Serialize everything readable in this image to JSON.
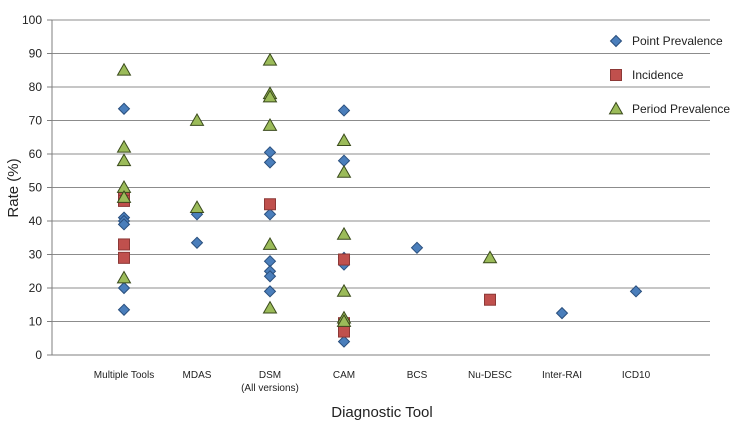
{
  "chart_data": {
    "type": "scatter",
    "title": "",
    "xlabel": "Diagnostic Tool",
    "ylabel": "Rate (%)",
    "ylim": [
      0,
      100
    ],
    "yticks": [
      0,
      10,
      20,
      30,
      40,
      50,
      60,
      70,
      80,
      90,
      100
    ],
    "grid": true,
    "legend_position": "top-right",
    "categories": [
      {
        "label": "Multiple Tools"
      },
      {
        "label": "MDAS"
      },
      {
        "label": "DSM",
        "sublabel": "(All versions)"
      },
      {
        "label": "CAM"
      },
      {
        "label": "BCS"
      },
      {
        "label": "Nu-DESC"
      },
      {
        "label": "Inter-RAI"
      },
      {
        "label": "ICD10"
      }
    ],
    "series": [
      {
        "name": "Point Prevalence",
        "marker": "diamond",
        "color": "#4a7ebb",
        "stroke": "#2a4f7d",
        "points": [
          {
            "category": "Multiple Tools",
            "value": 73.5
          },
          {
            "category": "Multiple Tools",
            "value": 41
          },
          {
            "category": "Multiple Tools",
            "value": 40
          },
          {
            "category": "Multiple Tools",
            "value": 39
          },
          {
            "category": "Multiple Tools",
            "value": 20
          },
          {
            "category": "Multiple Tools",
            "value": 13.5
          },
          {
            "category": "MDAS",
            "value": 42
          },
          {
            "category": "MDAS",
            "value": 33.5
          },
          {
            "category": "DSM",
            "value": 60.5
          },
          {
            "category": "DSM",
            "value": 57.5
          },
          {
            "category": "DSM",
            "value": 42
          },
          {
            "category": "DSM",
            "value": 28
          },
          {
            "category": "DSM",
            "value": 25
          },
          {
            "category": "DSM",
            "value": 23.5
          },
          {
            "category": "DSM",
            "value": 19
          },
          {
            "category": "CAM",
            "value": 73
          },
          {
            "category": "CAM",
            "value": 58
          },
          {
            "category": "CAM",
            "value": 29
          },
          {
            "category": "CAM",
            "value": 27
          },
          {
            "category": "CAM",
            "value": 4
          },
          {
            "category": "BCS",
            "value": 32
          },
          {
            "category": "Inter-RAI",
            "value": 12.5
          },
          {
            "category": "ICD10",
            "value": 19
          }
        ]
      },
      {
        "name": "Incidence",
        "marker": "square",
        "color": "#c0504d",
        "stroke": "#8c3836",
        "points": [
          {
            "category": "Multiple Tools",
            "value": 47
          },
          {
            "category": "Multiple Tools",
            "value": 46
          },
          {
            "category": "Multiple Tools",
            "value": 33
          },
          {
            "category": "Multiple Tools",
            "value": 29
          },
          {
            "category": "DSM",
            "value": 45
          },
          {
            "category": "CAM",
            "value": 28.5
          },
          {
            "category": "CAM",
            "value": 9.5
          },
          {
            "category": "CAM",
            "value": 7
          },
          {
            "category": "Nu-DESC",
            "value": 16.5
          }
        ]
      },
      {
        "name": "Period Prevalence",
        "marker": "triangle",
        "color": "#9bbb59",
        "stroke": "#3a4a1c",
        "points": [
          {
            "category": "Multiple Tools",
            "value": 85
          },
          {
            "category": "Multiple Tools",
            "value": 62
          },
          {
            "category": "Multiple Tools",
            "value": 58
          },
          {
            "category": "Multiple Tools",
            "value": 50
          },
          {
            "category": "Multiple Tools",
            "value": 47
          },
          {
            "category": "Multiple Tools",
            "value": 23
          },
          {
            "category": "MDAS",
            "value": 70
          },
          {
            "category": "MDAS",
            "value": 44
          },
          {
            "category": "DSM",
            "value": 88
          },
          {
            "category": "DSM",
            "value": 78
          },
          {
            "category": "DSM",
            "value": 77
          },
          {
            "category": "DSM",
            "value": 68.5
          },
          {
            "category": "DSM",
            "value": 33
          },
          {
            "category": "DSM",
            "value": 14
          },
          {
            "category": "CAM",
            "value": 64
          },
          {
            "category": "CAM",
            "value": 54.5
          },
          {
            "category": "CAM",
            "value": 36
          },
          {
            "category": "CAM",
            "value": 19
          },
          {
            "category": "CAM",
            "value": 11
          },
          {
            "category": "CAM",
            "value": 10
          },
          {
            "category": "Nu-DESC",
            "value": 29
          }
        ]
      }
    ]
  }
}
